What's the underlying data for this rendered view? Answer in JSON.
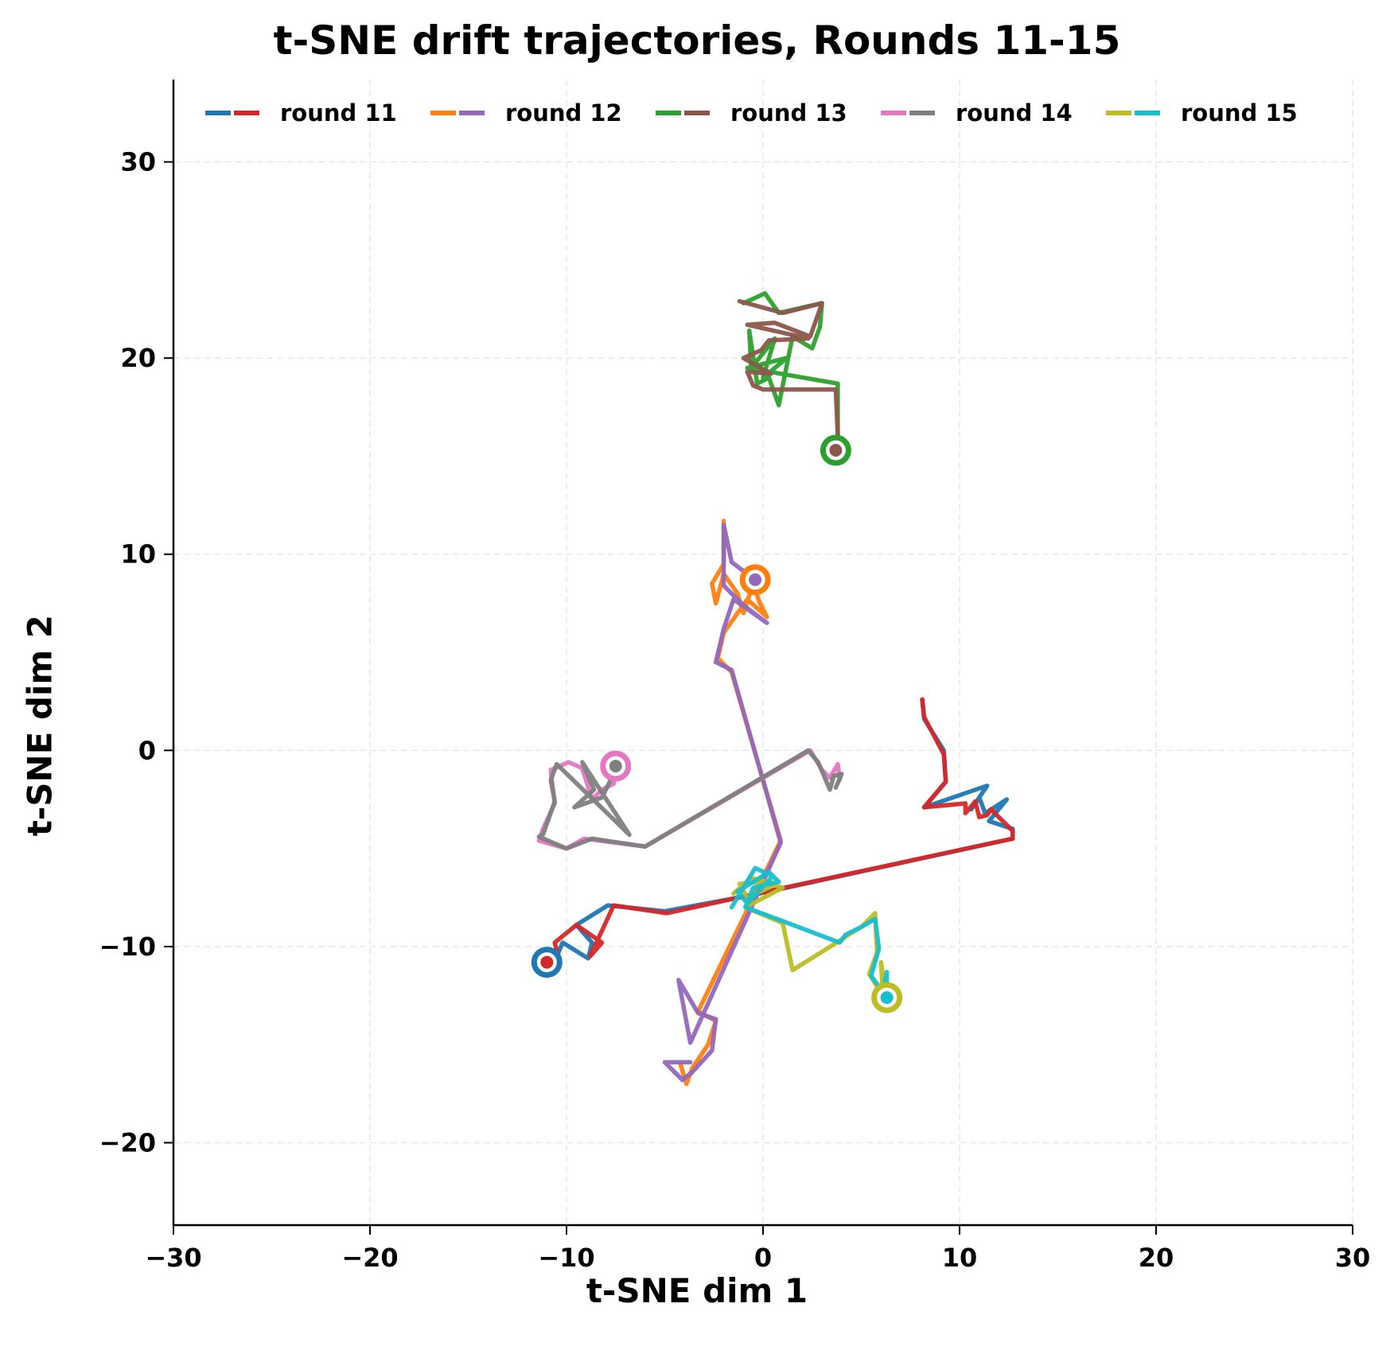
{
  "chart_data": {
    "type": "line",
    "title": "t-SNE drift trajectories, Rounds 11-15",
    "xlabel": "t-SNE dim 1",
    "ylabel": "t-SNE dim 2",
    "xlim": [
      -30,
      30
    ],
    "ylim": [
      -24.2,
      34.2
    ],
    "xticks": [
      -30,
      -20,
      -10,
      0,
      10,
      20,
      30
    ],
    "yticks": [
      -20,
      -10,
      0,
      10,
      20,
      30
    ],
    "xtick_labels": [
      "−30",
      "−20",
      "−10",
      "0",
      "10",
      "20",
      "30"
    ],
    "ytick_labels": [
      "−20",
      "−10",
      "0",
      "10",
      "20",
      "30"
    ],
    "grid": true,
    "legend_position": "top (upper center, single row)",
    "legend": [
      {
        "label": "round 11",
        "colors": [
          "#1f77b4",
          "#d62728"
        ]
      },
      {
        "label": "round 12",
        "colors": [
          "#ff7f0e",
          "#9467bd"
        ]
      },
      {
        "label": "round 13",
        "colors": [
          "#2ca02c",
          "#8c564b"
        ]
      },
      {
        "label": "round 14",
        "colors": [
          "#e377c2",
          "#7f7f7f"
        ]
      },
      {
        "label": "round 15",
        "colors": [
          "#bcbd22",
          "#17becf"
        ]
      }
    ],
    "series": [
      {
        "name": "round 11 (a)",
        "color": "#1f77b4",
        "points": [
          [
            8.1,
            2.6
          ],
          [
            8.2,
            1.6
          ],
          [
            9.2,
            0.0
          ],
          [
            9.3,
            -1.6
          ],
          [
            8.2,
            -2.9
          ],
          [
            11.4,
            -1.8
          ],
          [
            10.6,
            -3.0
          ],
          [
            11.0,
            -2.4
          ],
          [
            11.3,
            -3.2
          ],
          [
            12.4,
            -2.5
          ],
          [
            11.5,
            -3.6
          ],
          [
            12.7,
            -4.0
          ],
          [
            12.7,
            -4.5
          ],
          [
            -0.2,
            -7.3
          ],
          [
            -5.0,
            -8.2
          ],
          [
            -7.9,
            -7.9
          ],
          [
            -9.5,
            -8.9
          ],
          [
            -8.7,
            -9.8
          ],
          [
            -8.9,
            -10.6
          ],
          [
            -10.2,
            -9.8
          ],
          [
            -10.5,
            -10.5
          ],
          [
            -11.0,
            -10.8
          ]
        ],
        "start_marker": [
          -11.0,
          -10.8
        ]
      },
      {
        "name": "round 11 (b)",
        "color": "#d62728",
        "points": [
          [
            8.1,
            2.6
          ],
          [
            8.2,
            1.7
          ],
          [
            9.2,
            -0.2
          ],
          [
            9.3,
            -1.6
          ],
          [
            8.2,
            -2.9
          ],
          [
            10.3,
            -2.7
          ],
          [
            10.3,
            -3.2
          ],
          [
            10.8,
            -2.6
          ],
          [
            11.0,
            -3.4
          ],
          [
            11.4,
            -3.3
          ],
          [
            11.6,
            -3.0
          ],
          [
            12.7,
            -4.1
          ],
          [
            12.7,
            -4.5
          ],
          [
            -0.3,
            -7.3
          ],
          [
            -4.9,
            -8.3
          ],
          [
            -7.6,
            -7.9
          ],
          [
            -8.8,
            -10.5
          ],
          [
            -8.2,
            -9.8
          ],
          [
            -9.5,
            -8.9
          ],
          [
            -10.6,
            -9.8
          ],
          [
            -10.4,
            -10.6
          ],
          [
            -11.0,
            -10.8
          ]
        ],
        "end_marker": [
          -11.0,
          -10.8
        ]
      },
      {
        "name": "round 12 (a)",
        "color": "#ff7f0e",
        "points": [
          [
            -2.0,
            11.7
          ],
          [
            -2.0,
            9.5
          ],
          [
            -2.6,
            8.5
          ],
          [
            -2.4,
            7.5
          ],
          [
            -2.0,
            9.0
          ],
          [
            -1.3,
            8.0
          ],
          [
            -1.0,
            7.0
          ],
          [
            -0.5,
            8.5
          ],
          [
            -0.2,
            7.6
          ],
          [
            0.2,
            6.8
          ],
          [
            -0.8,
            7.7
          ],
          [
            -2.0,
            6.0
          ],
          [
            -2.3,
            4.7
          ],
          [
            -1.6,
            4.0
          ],
          [
            0.9,
            -4.6
          ],
          [
            -3.3,
            -13.3
          ],
          [
            -2.4,
            -13.8
          ],
          [
            -2.8,
            -15.0
          ],
          [
            -3.6,
            -16.2
          ],
          [
            -3.9,
            -17.0
          ],
          [
            -4.2,
            -16.0
          ]
        ],
        "start_marker": [
          -0.4,
          8.7
        ]
      },
      {
        "name": "round 12 (b)",
        "color": "#9467bd",
        "points": [
          [
            -0.4,
            8.7
          ],
          [
            -1.6,
            9.6
          ],
          [
            -2.0,
            11.5
          ],
          [
            -2.0,
            8.4
          ],
          [
            -1.0,
            7.4
          ],
          [
            0.2,
            6.5
          ],
          [
            -1.5,
            7.7
          ],
          [
            -2.0,
            6.2
          ],
          [
            -2.4,
            4.5
          ],
          [
            -1.6,
            4.1
          ],
          [
            0.9,
            -4.7
          ],
          [
            -3.7,
            -14.9
          ],
          [
            -4.3,
            -11.7
          ],
          [
            -3.3,
            -13.4
          ],
          [
            -2.4,
            -13.7
          ],
          [
            -2.6,
            -15.3
          ],
          [
            -3.6,
            -16.4
          ],
          [
            -4.1,
            -16.8
          ],
          [
            -5.0,
            -15.9
          ],
          [
            -3.7,
            -15.9
          ]
        ],
        "end_marker": [
          -0.4,
          8.7
        ]
      },
      {
        "name": "round 13 (a)",
        "color": "#2ca02c",
        "points": [
          [
            -1.0,
            22.8
          ],
          [
            0.1,
            23.3
          ],
          [
            0.8,
            22.3
          ],
          [
            3.0,
            22.8
          ],
          [
            2.9,
            21.6
          ],
          [
            2.5,
            20.5
          ],
          [
            1.5,
            21.1
          ],
          [
            0.8,
            17.6
          ],
          [
            0.3,
            19.0
          ],
          [
            -0.3,
            18.7
          ],
          [
            -0.7,
            21.4
          ],
          [
            -0.6,
            19.5
          ],
          [
            0.6,
            21.0
          ],
          [
            0.0,
            19.0
          ],
          [
            1.2,
            20.0
          ],
          [
            -0.8,
            19.5
          ],
          [
            3.8,
            18.7
          ],
          [
            3.8,
            16.0
          ],
          [
            3.7,
            15.3
          ]
        ],
        "start_marker": [
          3.7,
          15.3
        ]
      },
      {
        "name": "round 13 (b)",
        "color": "#8c564b",
        "points": [
          [
            -1.2,
            22.9
          ],
          [
            1.0,
            22.3
          ],
          [
            3.0,
            22.8
          ],
          [
            2.4,
            21.1
          ],
          [
            0.6,
            21.8
          ],
          [
            -0.8,
            21.7
          ],
          [
            2.3,
            21.0
          ],
          [
            0.3,
            20.9
          ],
          [
            -0.1,
            20.4
          ],
          [
            -1.0,
            20.0
          ],
          [
            0.4,
            19.2
          ],
          [
            -0.8,
            19.3
          ],
          [
            -0.5,
            18.6
          ],
          [
            0.0,
            18.4
          ],
          [
            3.7,
            18.4
          ],
          [
            3.8,
            16.1
          ],
          [
            3.7,
            15.3
          ]
        ],
        "end_marker": [
          3.7,
          15.3
        ]
      },
      {
        "name": "round 14 (a)",
        "color": "#e377c2",
        "points": [
          [
            -7.5,
            -0.8
          ],
          [
            -7.6,
            -1.7
          ],
          [
            -8.2,
            -2.0
          ],
          [
            -8.7,
            -2.5
          ],
          [
            -9.2,
            -0.9
          ],
          [
            -9.9,
            -0.6
          ],
          [
            -10.8,
            -1.0
          ],
          [
            -10.6,
            -2.7
          ],
          [
            -11.2,
            -4.0
          ],
          [
            -11.4,
            -4.6
          ],
          [
            -10.0,
            -5.0
          ],
          [
            -9.1,
            -4.5
          ],
          [
            -6.0,
            -4.9
          ],
          [
            2.4,
            0.0
          ],
          [
            3.0,
            -1.0
          ],
          [
            3.4,
            -1.4
          ],
          [
            3.8,
            -0.7
          ],
          [
            3.9,
            -1.5
          ]
        ],
        "start_marker": [
          -7.5,
          -0.8
        ]
      },
      {
        "name": "round 14 (b)",
        "color": "#7f7f7f",
        "points": [
          [
            -7.6,
            -0.8
          ],
          [
            -7.8,
            -1.6
          ],
          [
            -8.2,
            -2.4
          ],
          [
            -9.6,
            -2.9
          ],
          [
            -8.6,
            -2.0
          ],
          [
            -9.2,
            -0.6
          ],
          [
            -6.8,
            -4.3
          ],
          [
            -10.5,
            -0.7
          ],
          [
            -10.8,
            -1.5
          ],
          [
            -10.6,
            -2.6
          ],
          [
            -11.2,
            -4.3
          ],
          [
            -11.4,
            -4.4
          ],
          [
            -10.0,
            -5.0
          ],
          [
            -8.7,
            -4.5
          ],
          [
            -6.0,
            -4.9
          ],
          [
            2.3,
            0.0
          ],
          [
            2.8,
            -0.6
          ],
          [
            3.4,
            -2.0
          ],
          [
            3.6,
            -1.3
          ],
          [
            4.0,
            -1.2
          ],
          [
            3.7,
            -1.9
          ]
        ],
        "end_marker": [
          -7.5,
          -0.8
        ]
      },
      {
        "name": "round 15 (a)",
        "color": "#bcbd22",
        "points": [
          [
            -1.5,
            -7.3
          ],
          [
            -0.6,
            -6.5
          ],
          [
            0.7,
            -6.8
          ],
          [
            -0.8,
            -7.5
          ],
          [
            -1.2,
            -6.8
          ],
          [
            0.1,
            -6.7
          ],
          [
            1.0,
            -7.0
          ],
          [
            -0.9,
            -8.0
          ],
          [
            1.0,
            -8.8
          ],
          [
            1.5,
            -11.2
          ],
          [
            3.9,
            -9.7
          ],
          [
            4.5,
            -9.3
          ],
          [
            5.0,
            -9.0
          ],
          [
            5.7,
            -8.3
          ],
          [
            5.8,
            -10.3
          ],
          [
            5.4,
            -11.4
          ],
          [
            6.1,
            -12.5
          ],
          [
            6.0,
            -10.8
          ],
          [
            6.3,
            -12.6
          ]
        ],
        "start_marker": [
          6.3,
          -12.6
        ]
      },
      {
        "name": "round 15 (b)",
        "color": "#17becf",
        "points": [
          [
            -1.6,
            -8.0
          ],
          [
            -0.4,
            -6.0
          ],
          [
            0.5,
            -6.4
          ],
          [
            -0.8,
            -7.8
          ],
          [
            -1.3,
            -7.2
          ],
          [
            0.3,
            -6.2
          ],
          [
            0.8,
            -6.7
          ],
          [
            -0.5,
            -7.0
          ],
          [
            -0.9,
            -8.0
          ],
          [
            1.0,
            -8.7
          ],
          [
            3.9,
            -9.8
          ],
          [
            4.2,
            -9.4
          ],
          [
            5.0,
            -9.0
          ],
          [
            5.7,
            -8.6
          ],
          [
            5.9,
            -10.1
          ],
          [
            5.5,
            -11.5
          ],
          [
            6.1,
            -12.3
          ],
          [
            6.3,
            -11.3
          ],
          [
            6.3,
            -12.6
          ]
        ],
        "end_marker": [
          6.3,
          -12.6
        ]
      }
    ]
  }
}
